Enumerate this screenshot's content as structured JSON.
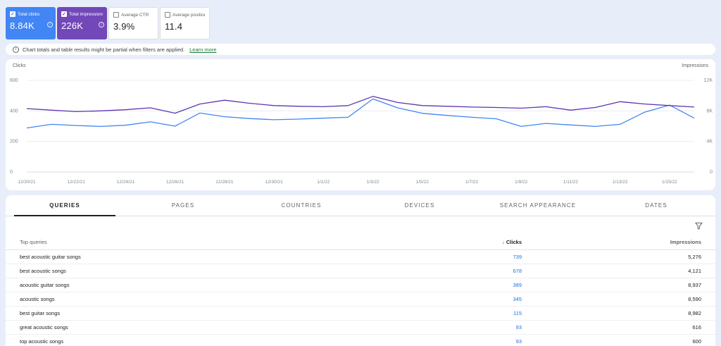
{
  "colors": {
    "clicks_blue": "#4285f4",
    "impressions_purple": "#7248b9",
    "link_blue": "#1a73e8",
    "learn_more_green": "#188038",
    "page_background": "#e8eef9"
  },
  "metrics": [
    {
      "label": "Total clicks",
      "value": "8.84K",
      "checked": true
    },
    {
      "label": "Total impressions",
      "value": "226K",
      "checked": true
    },
    {
      "label": "Average CTR",
      "value": "3.9%",
      "checked": false
    },
    {
      "label": "Average position",
      "value": "11.4",
      "checked": false
    }
  ],
  "banner": {
    "text": "Chart totals and table results might be partial when filters are applied.",
    "link": "Learn more"
  },
  "chart_data": {
    "type": "line",
    "x": [
      "12/20/21",
      "12/21/21",
      "12/22/21",
      "12/23/21",
      "12/24/21",
      "12/25/21",
      "12/26/21",
      "12/27/21",
      "12/28/21",
      "12/29/21",
      "12/30/21",
      "12/31/21",
      "1/1/22",
      "1/2/22",
      "1/3/22",
      "1/4/22",
      "1/5/22",
      "1/6/22",
      "1/7/22",
      "1/8/22",
      "1/9/22",
      "1/10/22",
      "1/11/22",
      "1/12/22",
      "1/13/22",
      "1/14/22",
      "1/15/22",
      "1/16/22"
    ],
    "x_tick_labels": [
      "12/20/21",
      "12/22/21",
      "12/24/21",
      "12/26/21",
      "12/28/21",
      "12/30/21",
      "1/1/22",
      "1/3/22",
      "1/5/22",
      "1/7/22",
      "1/9/22",
      "1/11/22",
      "1/13/22",
      "1/15/22"
    ],
    "series": [
      {
        "name": "Clicks",
        "axis": "left",
        "color": "#4285f4",
        "values": [
          288,
          312,
          304,
          298,
          306,
          328,
          300,
          386,
          362,
          350,
          342,
          346,
          352,
          358,
          478,
          420,
          384,
          370,
          358,
          348,
          298,
          318,
          308,
          298,
          312,
          392,
          438,
          352
        ]
      },
      {
        "name": "Impressions",
        "axis": "right",
        "color": "#5e35b1",
        "values": [
          8300,
          8100,
          7900,
          8000,
          8150,
          8400,
          7700,
          8900,
          9400,
          9000,
          8700,
          8600,
          8550,
          8700,
          9900,
          9100,
          8700,
          8600,
          8500,
          8450,
          8350,
          8550,
          8100,
          8450,
          9200,
          8900,
          8700,
          8500
        ]
      }
    ],
    "left_axis": {
      "label": "Clicks",
      "ticks": [
        600,
        400,
        200
      ],
      "max": 600
    },
    "right_axis": {
      "label": "Impressions",
      "ticks": [
        "12K",
        "8K",
        "4K"
      ],
      "max": 12000
    },
    "baseline_label": "0",
    "grid": true,
    "legend_position": "none"
  },
  "tabs": [
    {
      "label": "QUERIES",
      "active": true
    },
    {
      "label": "PAGES",
      "active": false
    },
    {
      "label": "COUNTRIES",
      "active": false
    },
    {
      "label": "DEVICES",
      "active": false
    },
    {
      "label": "SEARCH APPEARANCE",
      "active": false
    },
    {
      "label": "DATES",
      "active": false
    }
  ],
  "table": {
    "first_col_header": "Top queries",
    "sort_icon": "↓",
    "col_headers": [
      "Clicks",
      "Impressions"
    ],
    "rows": [
      {
        "query": "best acoustic guitar songs",
        "clicks": "739",
        "impressions": "5,276"
      },
      {
        "query": "best acoustic songs",
        "clicks": "678",
        "impressions": "4,121"
      },
      {
        "query": "acoustic guitar songs",
        "clicks": "389",
        "impressions": "8,937"
      },
      {
        "query": "acoustic songs",
        "clicks": "345",
        "impressions": "8,590"
      },
      {
        "query": "best guitar songs",
        "clicks": "115",
        "impressions": "8,982"
      },
      {
        "query": "great acoustic songs",
        "clicks": "93",
        "impressions": "616"
      },
      {
        "query": "top acoustic songs",
        "clicks": "93",
        "impressions": "600"
      }
    ]
  }
}
